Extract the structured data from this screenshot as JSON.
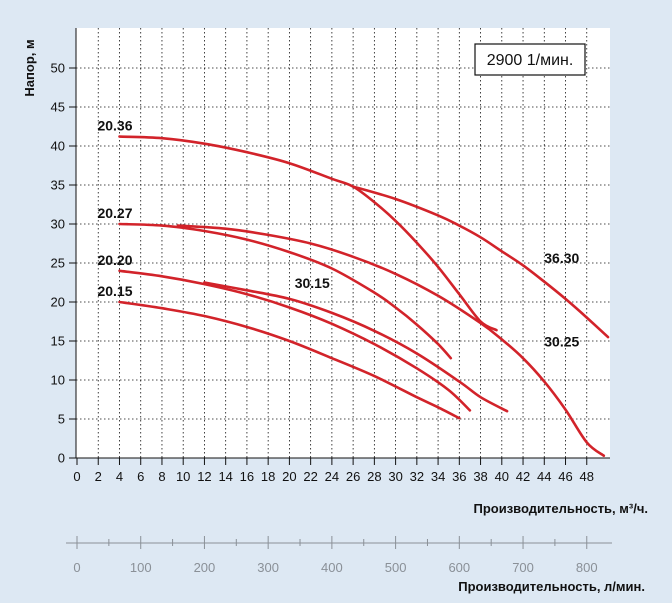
{
  "chart_data": {
    "type": "line",
    "speed_label": "2900 1/мин.",
    "ylabel": "Напор, м",
    "xlabel": "Производительность, м³/ч.",
    "x2label": "Производительность, л/мин.",
    "xlim": [
      0,
      50
    ],
    "ylim": [
      0,
      54
    ],
    "x_ticks": [
      0,
      2,
      4,
      6,
      8,
      10,
      12,
      14,
      16,
      18,
      20,
      22,
      24,
      26,
      28,
      30,
      32,
      34,
      36,
      38,
      40,
      42,
      44,
      46,
      48
    ],
    "y_ticks": [
      0,
      5,
      10,
      15,
      20,
      25,
      30,
      35,
      40,
      45,
      50
    ],
    "x2_ticks": [
      0,
      100,
      200,
      300,
      400,
      500,
      600,
      700,
      800
    ],
    "x2_factor": 16.6667,
    "series": [
      {
        "name": "20.36",
        "x": [
          4,
          8,
          12,
          16,
          20,
          24,
          26,
          28,
          30,
          32,
          34,
          36,
          38,
          39.5
        ],
        "y": [
          41.2,
          41.0,
          40.3,
          39.2,
          37.8,
          35.8,
          34.8,
          32.8,
          30.4,
          27.6,
          24.5,
          21.0,
          17.5,
          16.4
        ],
        "label_x": 4,
        "label_y": 41.2,
        "label_pos": "above-left"
      },
      {
        "name": "20.27",
        "x": [
          4,
          8,
          12,
          16,
          20,
          24,
          28,
          30,
          32,
          34,
          35.2
        ],
        "y": [
          30.0,
          29.8,
          29.1,
          28.0,
          26.4,
          24.3,
          21.2,
          19.3,
          17.1,
          14.6,
          12.8
        ],
        "label_x": 4,
        "label_y": 30.0,
        "label_pos": "above-left"
      },
      {
        "name": "20.20",
        "x": [
          4,
          8,
          12,
          16,
          20,
          24,
          28,
          32,
          35,
          37
        ],
        "y": [
          24.0,
          23.3,
          22.3,
          21.0,
          19.3,
          17.2,
          14.6,
          11.5,
          8.7,
          6.1
        ],
        "label_x": 4,
        "label_y": 24.0,
        "label_pos": "above-left"
      },
      {
        "name": "20.15",
        "x": [
          4,
          8,
          12,
          16,
          20,
          24,
          28,
          32,
          34,
          36
        ],
        "y": [
          20.0,
          19.2,
          18.2,
          16.8,
          15.0,
          12.8,
          10.5,
          7.8,
          6.5,
          5.1
        ],
        "label_x": 4,
        "label_y": 20.0,
        "label_pos": "above-left"
      },
      {
        "name": "30.15",
        "x": [
          12,
          16,
          20,
          24,
          28,
          32,
          36,
          38,
          40.5
        ],
        "y": [
          22.5,
          21.5,
          20.4,
          18.6,
          16.3,
          13.4,
          9.8,
          7.8,
          6.0
        ],
        "label_x": 20.5,
        "label_y": 21.0,
        "label_pos": "above-right"
      },
      {
        "name": "30.25",
        "x": [
          9.5,
          14,
          18,
          22,
          26,
          30,
          34,
          38,
          40,
          42,
          44,
          46,
          48,
          49.6
        ],
        "y": [
          29.8,
          29.4,
          28.6,
          27.5,
          25.8,
          23.6,
          20.8,
          17.3,
          15.2,
          12.8,
          9.8,
          6.2,
          2.0,
          0.3
        ],
        "label_x": 44,
        "label_y": 13.5,
        "label_pos": "above-right"
      },
      {
        "name": "36.30",
        "x": [
          26,
          30,
          34,
          36,
          38,
          40,
          42,
          44,
          46,
          48,
          50
        ],
        "y": [
          34.8,
          33.2,
          31.1,
          29.8,
          28.3,
          26.5,
          24.7,
          22.6,
          20.4,
          18.0,
          15.5
        ],
        "label_x": 44,
        "label_y": 24.2,
        "label_pos": "above-right"
      }
    ]
  }
}
